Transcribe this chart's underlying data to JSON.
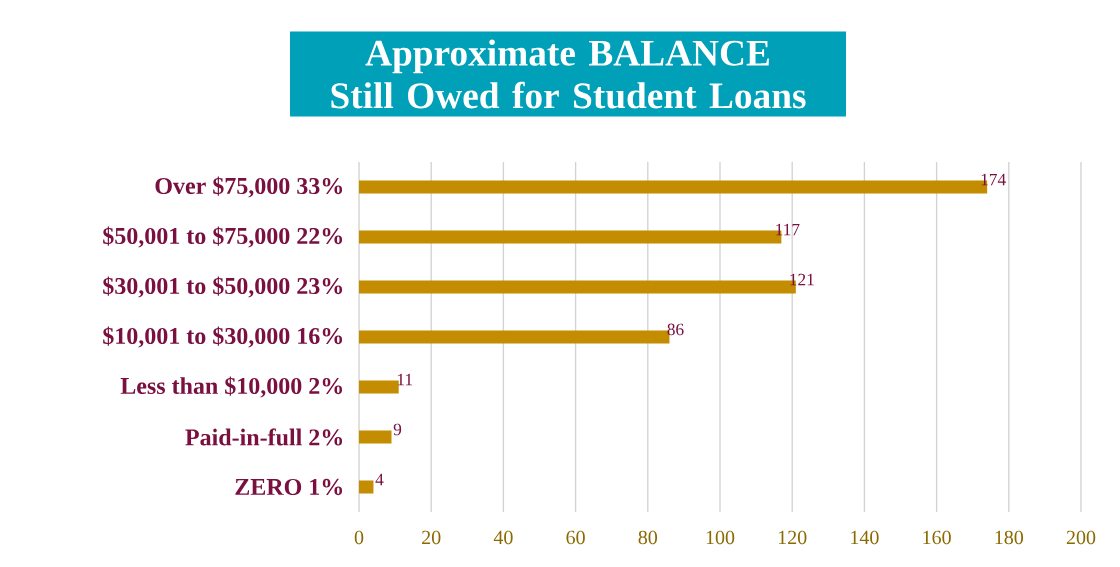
{
  "chart_data": {
    "type": "bar",
    "orientation": "horizontal",
    "title": "Approximate BALANCE Still Owed for Student Loans",
    "categories": [
      "Over $75,000  33%",
      "$50,001 to $75,000  22%",
      "$30,001 to $50,000  23%",
      "$10,001 to $30,000  16%",
      "Less than $10,000  2%",
      "Paid-in-full  2%",
      "ZERO  1%"
    ],
    "values": [
      174,
      117,
      121,
      86,
      11,
      9,
      4
    ],
    "color": "#c48c00",
    "xlim": [
      0,
      200
    ],
    "xticks": [
      0,
      20,
      40,
      60,
      80,
      100,
      120,
      140,
      160,
      180,
      200
    ],
    "grid": "x",
    "data_labels": true
  }
}
